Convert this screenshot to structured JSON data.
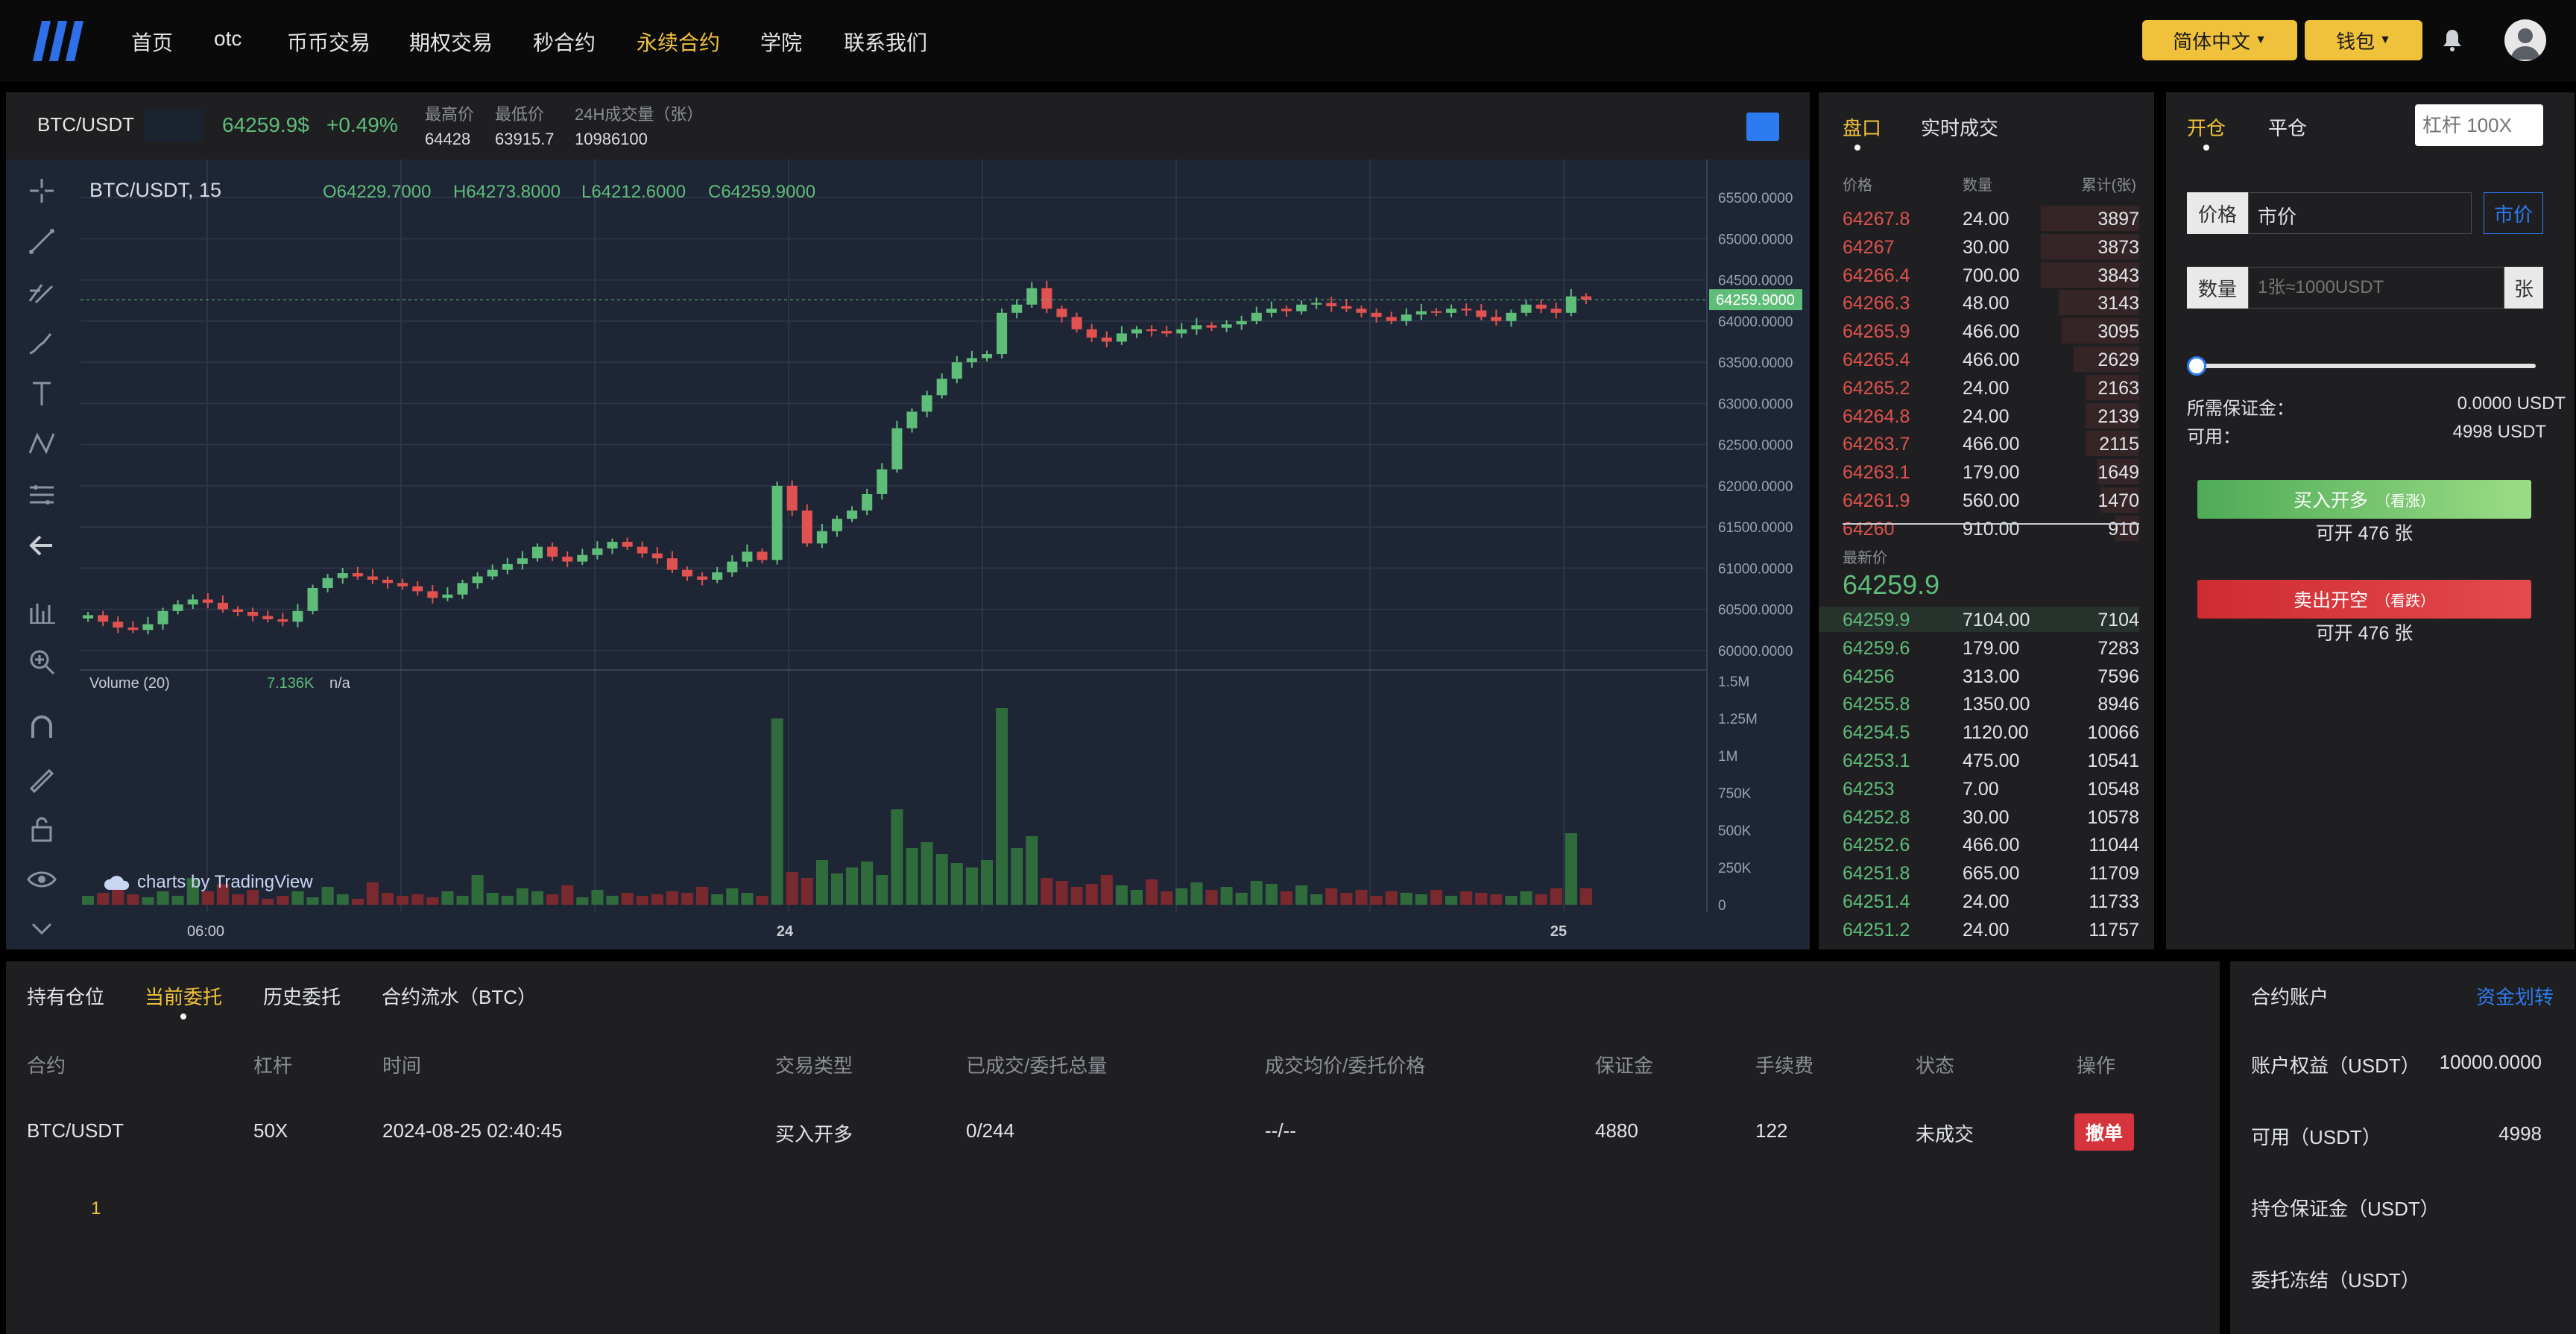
{
  "nav": {
    "items": [
      "首页",
      "otc",
      "币币交易",
      "期权交易",
      "秒合约",
      "永续合约",
      "学院",
      "联系我们"
    ],
    "language": "简体中文",
    "wallet": "钱包"
  },
  "ticker": {
    "symbol": "BTC/USDT",
    "price": "64259.9$",
    "change": "+0.49%",
    "high_label": "最高价",
    "high": "64428",
    "low_label": "最低价",
    "low": "63915.7",
    "vol_label": "24H成交量（张）",
    "vol": "10986100"
  },
  "chart": {
    "title": "BTC/USDT, 15",
    "ohlc": {
      "o": "O64229.7000",
      "h": "H64273.8000",
      "l": "L64212.6000",
      "c": "C64259.9000"
    },
    "last_price": "64259.9000",
    "volume_label": "Volume (20)",
    "volume_value": "7.136K",
    "volume_na": "n/a",
    "watermark": "charts by TradingView",
    "x_labels": [
      "06:00",
      "24",
      "25"
    ]
  },
  "chart_data": {
    "type": "candlestick",
    "ylim": [
      59900,
      65600
    ],
    "y_ticks": [
      "65500.0000",
      "65000.0000",
      "64500.0000",
      "64000.0000",
      "63500.0000",
      "63000.0000",
      "62500.0000",
      "62000.0000",
      "61500.0000",
      "61000.0000",
      "60500.0000",
      "60000.0000"
    ],
    "y_tick_values": [
      65500,
      65000,
      64500,
      64000,
      63500,
      63000,
      62500,
      62000,
      61500,
      61000,
      60500,
      60000
    ],
    "volume_ticks": [
      "1.5M",
      "1.25M",
      "1M",
      "750K",
      "500K",
      "250K",
      "0"
    ],
    "volume_tick_values": [
      1500000,
      1250000,
      1000000,
      750000,
      500000,
      250000,
      0
    ],
    "close": [
      60430,
      60350,
      60280,
      60250,
      60320,
      60480,
      60560,
      60620,
      60580,
      60500,
      60470,
      60420,
      60380,
      60350,
      60480,
      60760,
      60880,
      60940,
      60900,
      60860,
      60820,
      60780,
      60720,
      60640,
      60680,
      60820,
      60900,
      60980,
      61050,
      61120,
      61260,
      61140,
      61080,
      61160,
      61240,
      61320,
      61260,
      61180,
      61120,
      60980,
      60900,
      60860,
      60950,
      61080,
      61200,
      61100,
      62000,
      61700,
      61300,
      61450,
      61600,
      61700,
      61900,
      62200,
      62700,
      62900,
      63100,
      63300,
      63500,
      63550,
      63600,
      64100,
      64200,
      64400,
      64150,
      64050,
      63900,
      63800,
      63750,
      63850,
      63900,
      63880,
      63850,
      63900,
      63950,
      63920,
      63960,
      64000,
      64100,
      64150,
      64120,
      64200,
      64220,
      64180,
      64150,
      64100,
      64050,
      64000,
      64080,
      64120,
      64100,
      64150,
      64130,
      64050,
      64000,
      64100,
      64200,
      64150,
      64100,
      64300,
      64260
    ],
    "volume_k": [
      60,
      80,
      120,
      70,
      50,
      90,
      60,
      180,
      90,
      140,
      70,
      100,
      40,
      60,
      90,
      50,
      120,
      70,
      40,
      150,
      80,
      60,
      70,
      50,
      90,
      60,
      200,
      80,
      60,
      110,
      90,
      70,
      130,
      50,
      100,
      60,
      80,
      60,
      70,
      90,
      80,
      120,
      70,
      110,
      80,
      60,
      1250,
      220,
      180,
      300,
      210,
      250,
      290,
      200,
      640,
      380,
      420,
      340,
      280,
      250,
      300,
      1320,
      380,
      460,
      180,
      160,
      120,
      140,
      200,
      130,
      100,
      170,
      90,
      110,
      150,
      100,
      120,
      80,
      160,
      140,
      90,
      130,
      70,
      110,
      80,
      100,
      60,
      90,
      80,
      70,
      100,
      60,
      90,
      80,
      70,
      60,
      90,
      70,
      110,
      480,
      110
    ]
  },
  "orderbook": {
    "tabs": [
      "盘口",
      "实时成交"
    ],
    "headers": [
      "价格",
      "数量",
      "累计(张)"
    ],
    "asks": [
      [
        "64267.8",
        "24.00",
        "3897"
      ],
      [
        "64267",
        "30.00",
        "3873"
      ],
      [
        "64266.4",
        "700.00",
        "3843"
      ],
      [
        "64266.3",
        "48.00",
        "3143"
      ],
      [
        "64265.9",
        "466.00",
        "3095"
      ],
      [
        "64265.4",
        "466.00",
        "2629"
      ],
      [
        "64265.2",
        "24.00",
        "2163"
      ],
      [
        "64264.8",
        "24.00",
        "2139"
      ],
      [
        "64263.7",
        "466.00",
        "2115"
      ],
      [
        "64263.1",
        "179.00",
        "1649"
      ],
      [
        "64261.9",
        "560.00",
        "1470"
      ],
      [
        "64260",
        "910.00",
        "910"
      ]
    ],
    "ask_depth": [
      0.33,
      0.33,
      0.33,
      0.27,
      0.26,
      0.22,
      0.18,
      0.18,
      0.18,
      0.14,
      0.13,
      0.08
    ],
    "latest_label": "最新价",
    "latest": "64259.9",
    "bids": [
      [
        "64259.9",
        "7104.00",
        "7104"
      ],
      [
        "64259.6",
        "179.00",
        "7283"
      ],
      [
        "64256",
        "313.00",
        "7596"
      ],
      [
        "64255.8",
        "1350.00",
        "8946"
      ],
      [
        "64254.5",
        "1120.00",
        "10066"
      ],
      [
        "64253.1",
        "475.00",
        "10541"
      ],
      [
        "64253",
        "7.00",
        "10548"
      ],
      [
        "64252.8",
        "30.00",
        "10578"
      ],
      [
        "64252.6",
        "466.00",
        "11044"
      ],
      [
        "64251.8",
        "665.00",
        "11709"
      ],
      [
        "64251.4",
        "24.00",
        "11733"
      ],
      [
        "64251.2",
        "24.00",
        "11757"
      ]
    ],
    "bid_depth": [
      1.0,
      0.6,
      0.64,
      0.75,
      0.85,
      0.89,
      0.89,
      0.9,
      0.93,
      0.99,
      0.99,
      1.0
    ]
  },
  "trade": {
    "tabs": [
      "开仓",
      "平仓"
    ],
    "leverage_placeholder": "杠杆 100X",
    "price_label": "价格",
    "price_value": "市价",
    "market_btn": "市价",
    "qty_label": "数量",
    "qty_placeholder": "1张≈1000USDT",
    "qty_unit": "张",
    "slider_percent": 0,
    "margin_label": "所需保证金：",
    "margin_value": "0.0000 USDT",
    "avail_label": "可用：",
    "avail_value": "4998 USDT",
    "buy_btn": "买入开多",
    "buy_hint": "（看涨）",
    "buy_avail": "可开 476 张",
    "sell_btn": "卖出开空",
    "sell_hint": "（看跌）",
    "sell_avail": "可开 476 张"
  },
  "orders": {
    "tabs": [
      "持有仓位",
      "当前委托",
      "历史委托",
      "合约流水（BTC）"
    ],
    "headers": [
      "合约",
      "杠杆",
      "时间",
      "交易类型",
      "已成交/委托总量",
      "成交均价/委托价格",
      "保证金",
      "手续费",
      "状态",
      "操作"
    ],
    "row": [
      "BTC/USDT",
      "50X",
      "2024-08-25 02:40:45",
      "买入开多",
      "0/244",
      "--/--",
      "4880",
      "122",
      "未成交"
    ],
    "cancel": "撤单",
    "page": "1"
  },
  "account": {
    "title": "合约账户",
    "transfer": "资金划转",
    "equity_label": "账户权益（USDT）",
    "equity": "10000.0000",
    "avail_label": "可用（USDT）",
    "avail": "4998",
    "pos_margin_label": "持仓保证金（USDT）",
    "frozen_label": "委托冻结（USDT）"
  },
  "colors": {
    "accent": "#f0c23c",
    "up": "#5fbd7a",
    "down": "#e0524f",
    "buy": "#6cc46b",
    "sell": "#d6343c",
    "link": "#2d7bf0"
  }
}
